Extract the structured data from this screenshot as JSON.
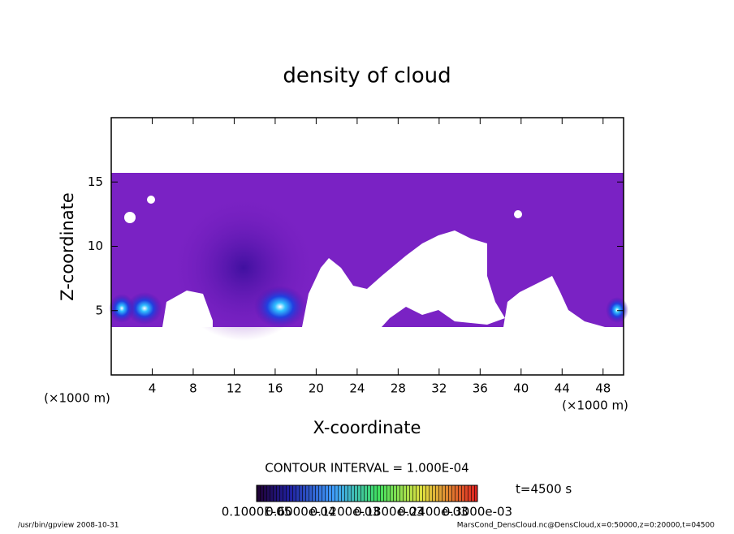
{
  "chart_data": {
    "type": "contour",
    "title": "density of cloud",
    "x_label": "X-coordinate",
    "y_label": "Z-coordinate",
    "y_unit": "(×1000 m)",
    "x_unit": "(×1000 m)",
    "xlim": [
      0,
      50
    ],
    "ylim": [
      0,
      20
    ],
    "xticks": [
      4,
      8,
      12,
      16,
      20,
      24,
      28,
      32,
      36,
      40,
      44,
      48
    ],
    "yticks": [
      5,
      10,
      15
    ],
    "contour_interval": "CONTOUR INTERVAL = 1.000E-04",
    "time": "t=4500 s",
    "colorbar_labels": [
      "0.1000E-05",
      "0.6000e-04",
      "0.1200e-03",
      "0.1800e-03",
      "0.2400e-03",
      "0.3000e-03"
    ]
  },
  "footer": {
    "left": "/usr/bin/gpview   2008-10-31",
    "right": "MarsCond_DensCloud.nc@DensCloud,x=0:50000,z=0:20000,t=04500"
  }
}
